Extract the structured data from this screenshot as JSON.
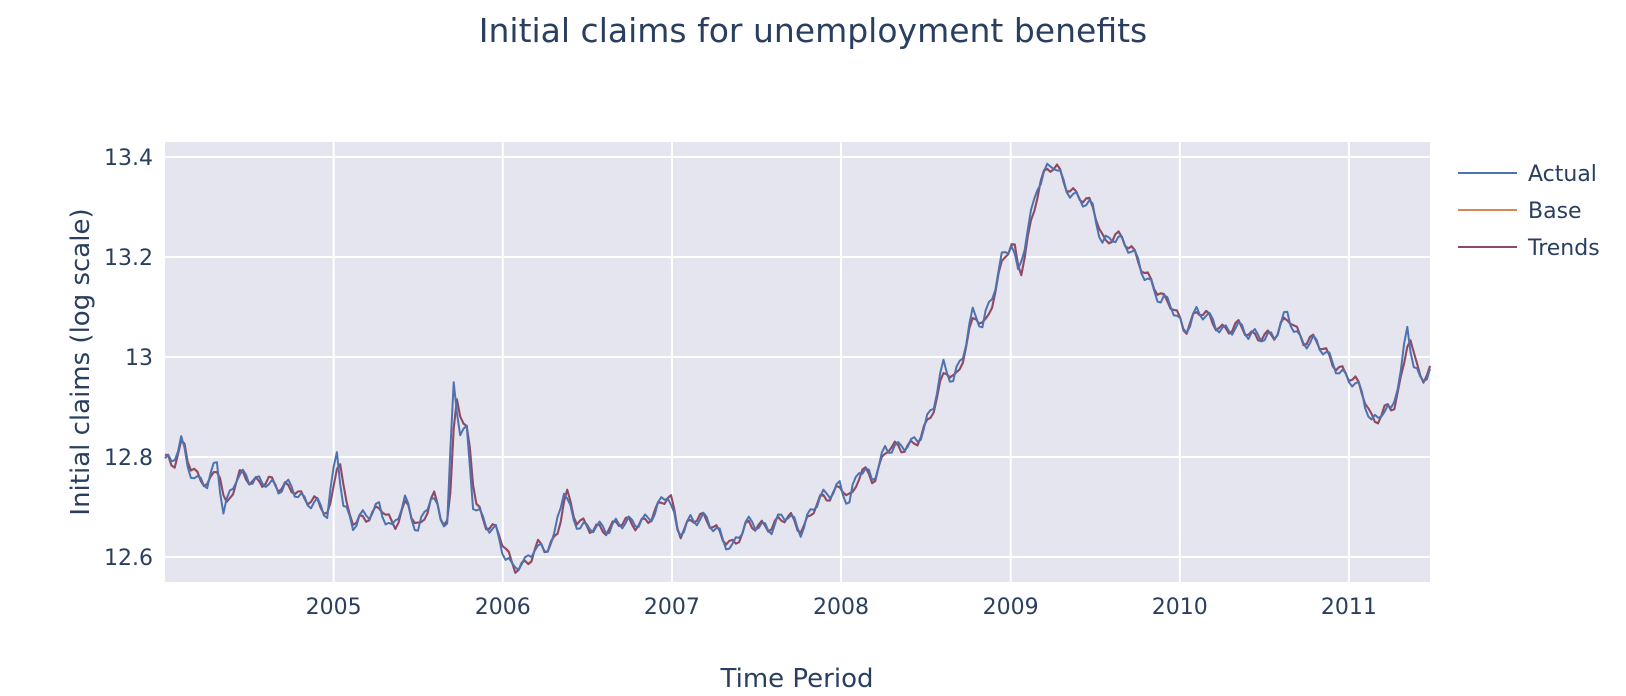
{
  "chart_data": {
    "type": "line",
    "title": "Initial claims for unemployment benefits",
    "xlabel": "Time Period",
    "ylabel": "Initial claims (log scale)",
    "xlim": [
      "2004-01-03",
      "2011-06-25"
    ],
    "ylim": [
      12.55,
      13.43
    ],
    "x_ticks": [
      "2005",
      "2006",
      "2007",
      "2008",
      "2009",
      "2010",
      "2011"
    ],
    "y_ticks": [
      "12.6",
      "12.8",
      "13",
      "13.2",
      "13.4"
    ],
    "grid": true,
    "legend_position": "top-right",
    "background": "#e5e5f0",
    "x_frequency": "weekly",
    "anchors": [
      [
        "2004-01-03",
        12.79
      ],
      [
        "2004-01-17",
        12.78
      ],
      [
        "2004-02-07",
        12.84
      ],
      [
        "2004-02-21",
        12.79
      ],
      [
        "2004-03-13",
        12.75
      ],
      [
        "2004-04-03",
        12.74
      ],
      [
        "2004-04-24",
        12.79
      ],
      [
        "2004-05-08",
        12.7
      ],
      [
        "2004-06-05",
        12.76
      ],
      [
        "2004-07-03",
        12.75
      ],
      [
        "2004-08-07",
        12.76
      ],
      [
        "2004-09-04",
        12.73
      ],
      [
        "2004-10-02",
        12.74
      ],
      [
        "2004-10-30",
        12.72
      ],
      [
        "2004-11-27",
        12.7
      ],
      [
        "2004-12-18",
        12.68
      ],
      [
        "2005-01-08",
        12.82
      ],
      [
        "2005-01-22",
        12.71
      ],
      [
        "2005-02-12",
        12.66
      ],
      [
        "2005-03-12",
        12.68
      ],
      [
        "2005-04-09",
        12.71
      ],
      [
        "2005-05-07",
        12.65
      ],
      [
        "2005-06-04",
        12.71
      ],
      [
        "2005-07-02",
        12.66
      ],
      [
        "2005-07-30",
        12.72
      ],
      [
        "2005-08-20",
        12.67
      ],
      [
        "2005-09-03",
        12.67
      ],
      [
        "2005-09-17",
        12.95
      ],
      [
        "2005-10-01",
        12.86
      ],
      [
        "2005-10-15",
        12.85
      ],
      [
        "2005-10-29",
        12.7
      ],
      [
        "2005-11-19",
        12.67
      ],
      [
        "2005-12-17",
        12.66
      ],
      [
        "2006-01-07",
        12.6
      ],
      [
        "2006-01-21",
        12.57
      ],
      [
        "2006-02-18",
        12.59
      ],
      [
        "2006-03-11",
        12.63
      ],
      [
        "2006-04-01",
        12.61
      ],
      [
        "2006-04-22",
        12.63
      ],
      [
        "2006-05-13",
        12.74
      ],
      [
        "2006-06-03",
        12.68
      ],
      [
        "2006-07-01",
        12.65
      ],
      [
        "2006-08-05",
        12.66
      ],
      [
        "2006-09-02",
        12.67
      ],
      [
        "2006-10-07",
        12.66
      ],
      [
        "2006-11-04",
        12.68
      ],
      [
        "2006-12-02",
        12.7
      ],
      [
        "2006-12-23",
        12.72
      ],
      [
        "2007-01-13",
        12.65
      ],
      [
        "2007-02-10",
        12.68
      ],
      [
        "2007-03-10",
        12.67
      ],
      [
        "2007-04-14",
        12.65
      ],
      [
        "2007-05-12",
        12.62
      ],
      [
        "2007-06-09",
        12.66
      ],
      [
        "2007-07-07",
        12.67
      ],
      [
        "2007-08-04",
        12.66
      ],
      [
        "2007-09-08",
        12.68
      ],
      [
        "2007-10-06",
        12.66
      ],
      [
        "2007-11-03",
        12.7
      ],
      [
        "2007-12-01",
        12.72
      ],
      [
        "2007-12-29",
        12.75
      ],
      [
        "2008-01-19",
        12.71
      ],
      [
        "2008-02-09",
        12.77
      ],
      [
        "2008-03-08",
        12.76
      ],
      [
        "2008-04-05",
        12.82
      ],
      [
        "2008-05-03",
        12.81
      ],
      [
        "2008-05-31",
        12.83
      ],
      [
        "2008-06-28",
        12.86
      ],
      [
        "2008-07-19",
        12.9
      ],
      [
        "2008-08-09",
        12.98
      ],
      [
        "2008-08-30",
        12.96
      ],
      [
        "2008-09-20",
        13.01
      ],
      [
        "2008-10-11",
        13.08
      ],
      [
        "2008-11-01",
        13.06
      ],
      [
        "2008-11-22",
        13.13
      ],
      [
        "2008-12-13",
        13.2
      ],
      [
        "2009-01-03",
        13.22
      ],
      [
        "2009-01-17",
        13.16
      ],
      [
        "2009-02-07",
        13.26
      ],
      [
        "2009-02-28",
        13.35
      ],
      [
        "2009-03-21",
        13.37
      ],
      [
        "2009-04-04",
        13.38
      ],
      [
        "2009-04-25",
        13.35
      ],
      [
        "2009-05-16",
        13.33
      ],
      [
        "2009-06-06",
        13.31
      ],
      [
        "2009-06-27",
        13.29
      ],
      [
        "2009-07-18",
        13.23
      ],
      [
        "2009-08-08",
        13.25
      ],
      [
        "2009-09-05",
        13.22
      ],
      [
        "2009-10-03",
        13.19
      ],
      [
        "2009-10-31",
        13.15
      ],
      [
        "2009-11-21",
        13.11
      ],
      [
        "2009-12-12",
        13.1
      ],
      [
        "2010-01-09",
        13.06
      ],
      [
        "2010-02-06",
        13.09
      ],
      [
        "2010-03-06",
        13.07
      ],
      [
        "2010-04-03",
        13.06
      ],
      [
        "2010-05-01",
        13.06
      ],
      [
        "2010-05-29",
        13.04
      ],
      [
        "2010-06-26",
        13.05
      ],
      [
        "2010-07-24",
        13.04
      ],
      [
        "2010-08-21",
        13.08
      ],
      [
        "2010-09-18",
        13.04
      ],
      [
        "2010-10-16",
        13.03
      ],
      [
        "2010-11-13",
        13.0
      ],
      [
        "2010-12-11",
        12.98
      ],
      [
        "2011-01-08",
        12.95
      ],
      [
        "2011-01-29",
        12.92
      ],
      [
        "2011-02-19",
        12.87
      ],
      [
        "2011-03-12",
        12.9
      ],
      [
        "2011-04-02",
        12.89
      ],
      [
        "2011-04-23",
        12.96
      ],
      [
        "2011-05-07",
        13.06
      ],
      [
        "2011-05-21",
        12.99
      ],
      [
        "2011-06-04",
        12.96
      ],
      [
        "2011-06-25",
        12.97
      ]
    ],
    "series": [
      {
        "name": "Actual",
        "color": "#4c72b0",
        "lag_weeks": 0,
        "amplitude": 0.02
      },
      {
        "name": "Base",
        "color": "#dd8452",
        "lag_weeks": 1,
        "amplitude": 0.016
      },
      {
        "name": "Trends",
        "color": "#8c4a6a",
        "lag_weeks": 1,
        "amplitude": 0.018
      }
    ]
  }
}
